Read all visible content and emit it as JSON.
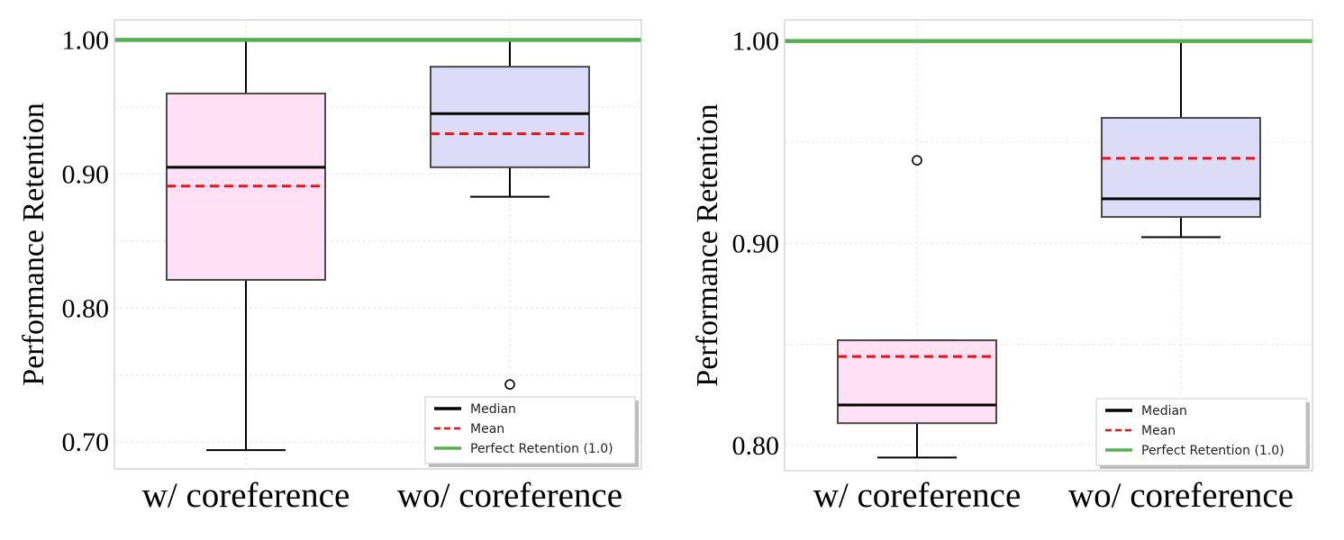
{
  "chart_data": [
    {
      "type": "box",
      "ylabel": "Performance Retention",
      "categories": [
        "w/ coreference",
        "wo/ coreference"
      ],
      "ylim": [
        0.68,
        1.015
      ],
      "yticks": [
        0.7,
        0.8,
        0.9,
        1.0
      ],
      "ytick_labels": [
        "0.70",
        "0.80",
        "0.90",
        "1.00"
      ],
      "grid": true,
      "reference_line": 1.0,
      "boxes": [
        {
          "category": "w/ coreference",
          "whisker_low": 0.694,
          "q1": 0.821,
          "median": 0.905,
          "mean": 0.891,
          "q3": 0.96,
          "whisker_high": 1.0,
          "outliers": [],
          "color": "#ffe0f4"
        },
        {
          "category": "wo/ coreference",
          "whisker_low": 0.883,
          "q1": 0.905,
          "median": 0.945,
          "mean": 0.93,
          "q3": 0.98,
          "whisker_high": 1.0,
          "outliers": [
            0.743
          ],
          "color": "#dcdcf8"
        }
      ],
      "legend": {
        "placement": "lower-right",
        "entries": [
          {
            "label": "Median",
            "color": "#000000",
            "style": "solid"
          },
          {
            "label": "Mean",
            "color": "#ee1111",
            "style": "dashed"
          },
          {
            "label": "Perfect Retention (1.0)",
            "color": "#55b055",
            "style": "solid"
          }
        ]
      }
    },
    {
      "type": "box",
      "ylabel": "Performance Retention",
      "categories": [
        "w/ coreference",
        "wo/ coreference"
      ],
      "ylim": [
        0.7875,
        1.0105
      ],
      "yticks": [
        0.8,
        0.9,
        1.0
      ],
      "ytick_labels": [
        "0.80",
        "0.90",
        "1.00"
      ],
      "grid": true,
      "reference_line": 1.0,
      "boxes": [
        {
          "category": "w/ coreference",
          "whisker_low": 0.794,
          "q1": 0.811,
          "median": 0.82,
          "mean": 0.844,
          "q3": 0.852,
          "whisker_high": 0.852,
          "outliers": [
            0.941
          ],
          "color": "#ffe0f4"
        },
        {
          "category": "wo/ coreference",
          "whisker_low": 0.903,
          "q1": 0.913,
          "median": 0.922,
          "mean": 0.942,
          "q3": 0.962,
          "whisker_high": 1.0,
          "outliers": [],
          "color": "#dcdcf8"
        }
      ],
      "legend": {
        "placement": "lower-right",
        "entries": [
          {
            "label": "Median",
            "color": "#000000",
            "style": "solid"
          },
          {
            "label": "Mean",
            "color": "#ee1111",
            "style": "dashed"
          },
          {
            "label": "Perfect Retention (1.0)",
            "color": "#55b055",
            "style": "solid"
          }
        ]
      }
    }
  ]
}
